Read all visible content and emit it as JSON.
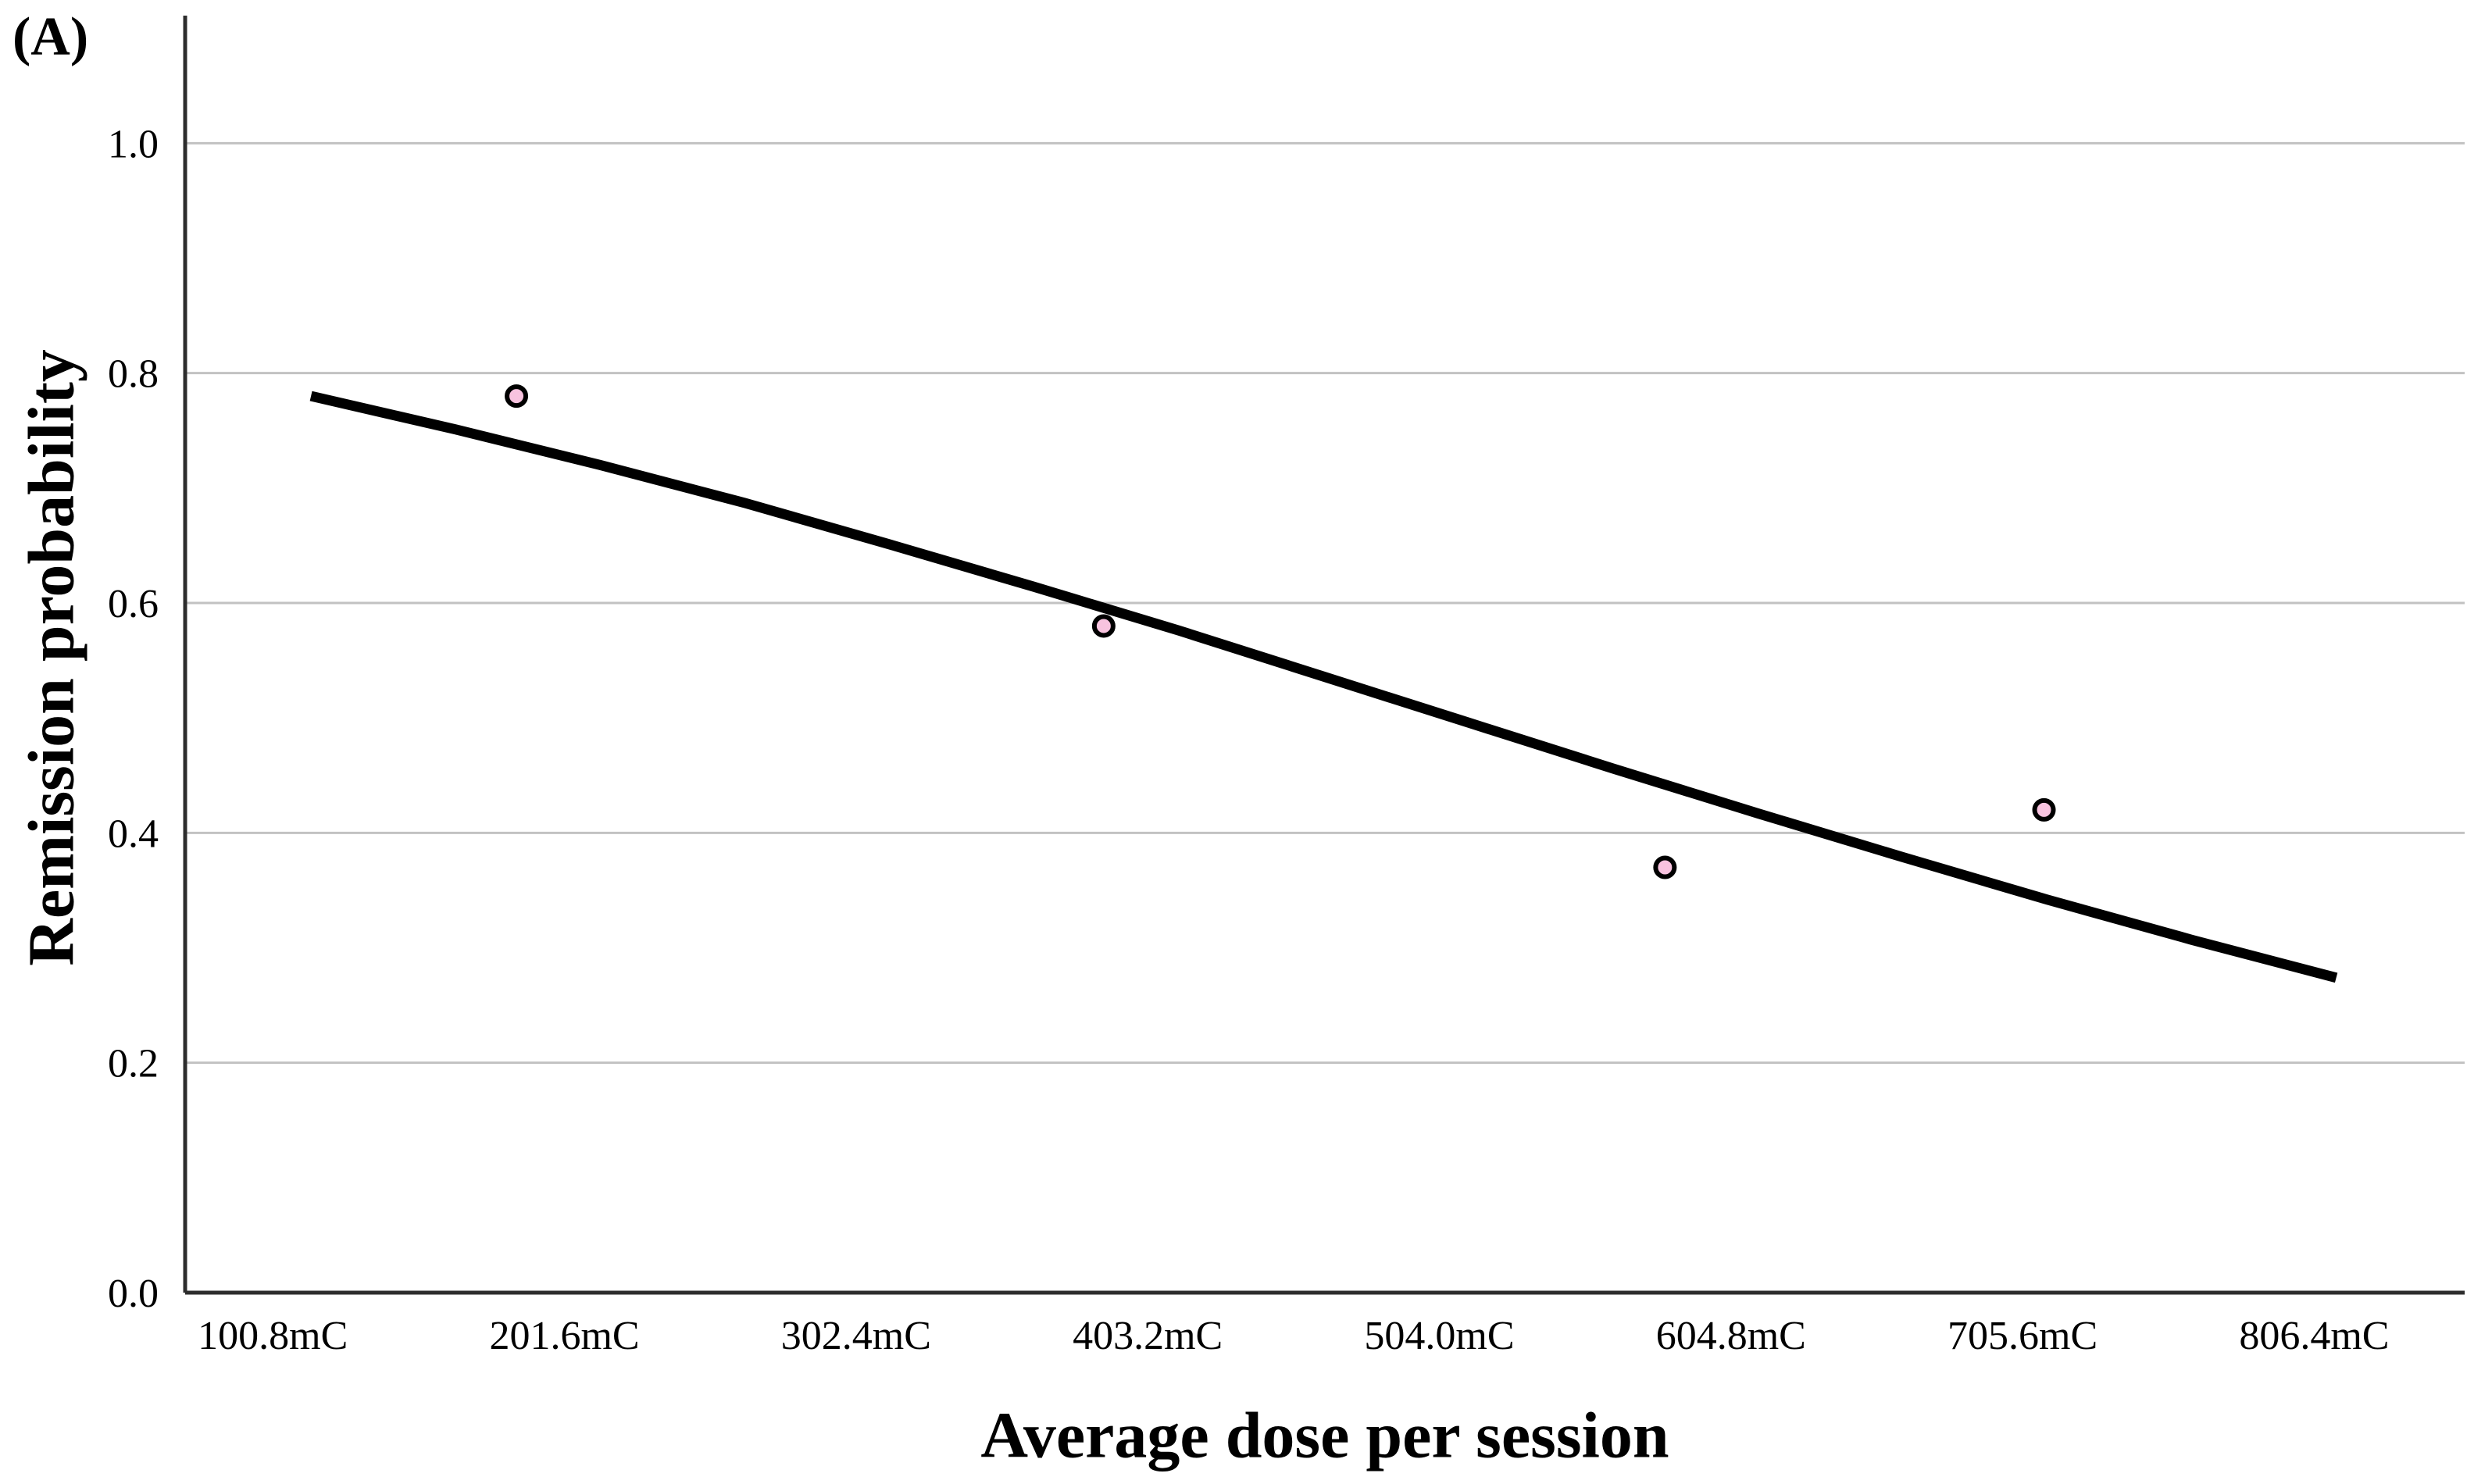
{
  "figure": {
    "panel_label": "(A)",
    "x_axis": {
      "title": "Average dose per session"
    },
    "y_axis": {
      "title": "Remission probability"
    }
  },
  "chart_data": {
    "type": "scatter",
    "title": "",
    "xlabel": "Average dose per session",
    "ylabel": "Remission probability",
    "x_unit": "mC",
    "xlim": [
      70.5,
      858.4
    ],
    "ylim": [
      0,
      1.111
    ],
    "grid": "horizontal-only",
    "legend": "none",
    "x_ticks": [
      {
        "value": 100.8,
        "label": "100.8mC"
      },
      {
        "value": 201.6,
        "label": "201.6mC"
      },
      {
        "value": 302.4,
        "label": "302.4mC"
      },
      {
        "value": 403.2,
        "label": "403.2mC"
      },
      {
        "value": 504.0,
        "label": "504.0mC"
      },
      {
        "value": 604.8,
        "label": "604.8mC"
      },
      {
        "value": 705.6,
        "label": "705.6mC"
      },
      {
        "value": 806.4,
        "label": "806.4mC"
      }
    ],
    "y_ticks": [
      {
        "value": 0.0,
        "label": "0.0"
      },
      {
        "value": 0.2,
        "label": "0.2"
      },
      {
        "value": 0.4,
        "label": "0.4"
      },
      {
        "value": 0.6,
        "label": "0.6"
      },
      {
        "value": 0.8,
        "label": "0.8"
      },
      {
        "value": 1.0,
        "label": "1.0"
      }
    ],
    "points": [
      {
        "x": 185,
        "y": 0.78
      },
      {
        "x": 388,
        "y": 0.58
      },
      {
        "x": 582,
        "y": 0.37
      },
      {
        "x": 713,
        "y": 0.42
      }
    ],
    "fit_curve_samples": [
      [
        114,
        0.78
      ],
      [
        164,
        0.751
      ],
      [
        214,
        0.72
      ],
      [
        264,
        0.687
      ],
      [
        314,
        0.651
      ],
      [
        364,
        0.614
      ],
      [
        414,
        0.576
      ],
      [
        464,
        0.536
      ],
      [
        514,
        0.496
      ],
      [
        564,
        0.456
      ],
      [
        614,
        0.417
      ],
      [
        664,
        0.379
      ],
      [
        714,
        0.342
      ],
      [
        764,
        0.307
      ],
      [
        814,
        0.274
      ]
    ],
    "colors": {
      "point_fill": "#f8c3df",
      "point_stroke": "#000000",
      "curve": "#000000",
      "gridline": "#c2c2c2",
      "axis": "#2d2d2d",
      "background": "#ffffff"
    }
  }
}
